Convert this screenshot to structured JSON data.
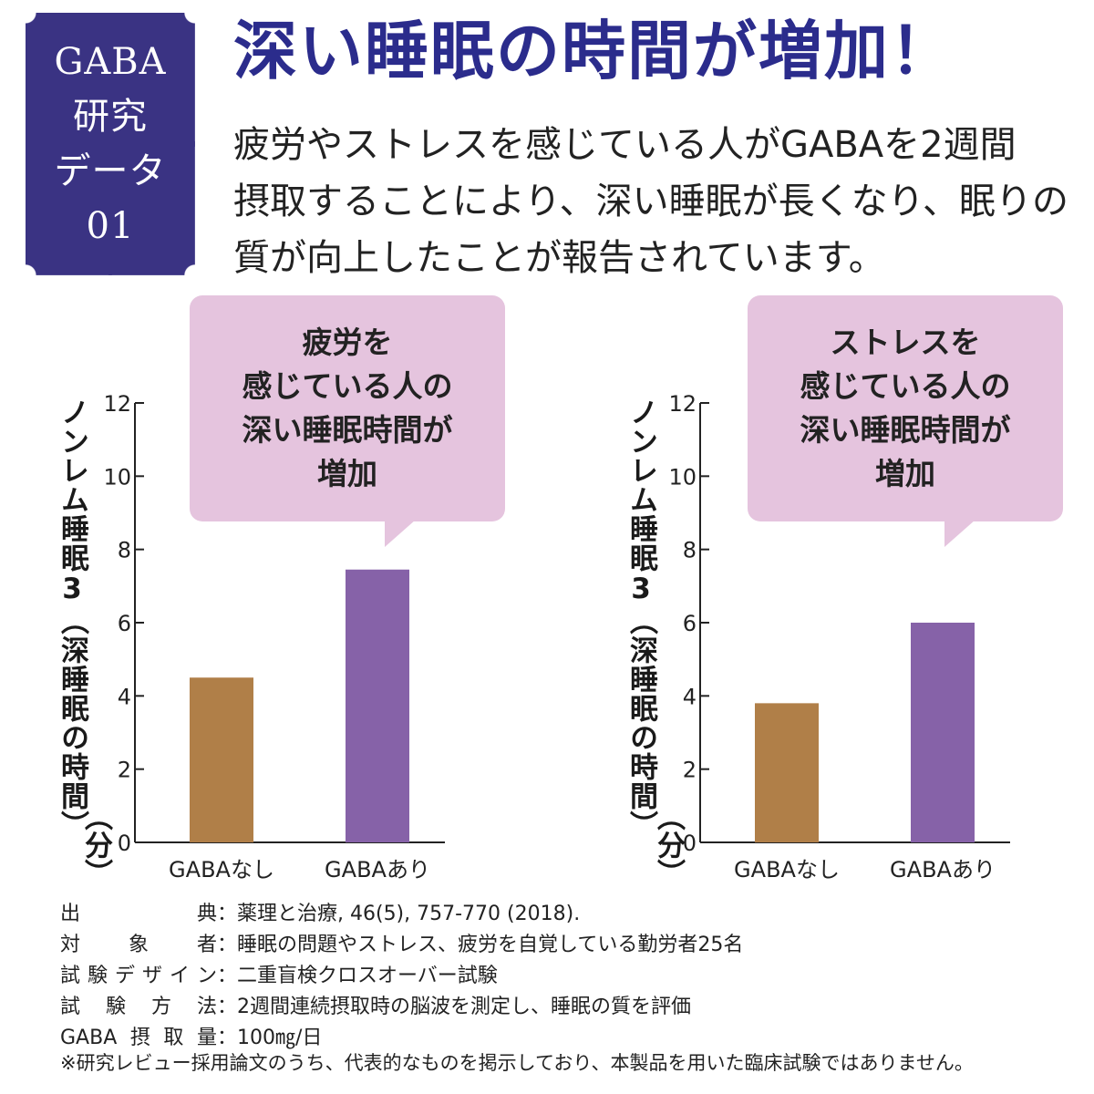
{
  "badge": {
    "lines": [
      "GABA",
      "研究",
      "データ",
      "01"
    ]
  },
  "header": {
    "title": "深い睡眠の時間が増加！",
    "lead_lines": [
      "疲労やストレスを感じている人がGABAを2週間",
      "摂取することにより、深い睡眠が長くなり、眠りの",
      "質が向上したことが報告されています。"
    ]
  },
  "panels": [
    {
      "callout_lines": [
        "疲労を",
        "感じている人の",
        "深い睡眠時間が",
        "増加"
      ]
    },
    {
      "callout_lines": [
        "ストレスを",
        "感じている人の",
        "深い睡眠時間が",
        "増加"
      ]
    }
  ],
  "colors": {
    "without_gaba": "#b07f48",
    "with_gaba": "#8662a8",
    "callout": "#e5c4de",
    "title": "#2b2c8c",
    "badge": "#3a3383"
  },
  "chart_data": [
    {
      "type": "bar",
      "categories": [
        "GABAなし",
        "GABAあり"
      ],
      "values": [
        4.5,
        7.45
      ],
      "ylabel": "ノンレム睡眠3（深睡眠の時間）",
      "yunit": "（分）",
      "ylim": [
        0,
        12
      ],
      "yticks": [
        0,
        2,
        4,
        6,
        8,
        10,
        12
      ],
      "grid": false
    },
    {
      "type": "bar",
      "categories": [
        "GABAなし",
        "GABAあり"
      ],
      "values": [
        3.8,
        6.0
      ],
      "ylabel": "ノンレム睡眠3（深睡眠の時間）",
      "yunit": "（分）",
      "ylim": [
        0,
        12
      ],
      "yticks": [
        0,
        2,
        4,
        6,
        8,
        10,
        12
      ],
      "grid": false
    }
  ],
  "study": [
    {
      "label": "出典",
      "value": "：薬理と治療, 46(5), 757-770 (2018)."
    },
    {
      "label": "対象者",
      "value": "：睡眠の問題やストレス、疲労を自覚している勤労者25名"
    },
    {
      "label": "試験デザイン",
      "value": "：二重盲検クロスオーバー試験"
    },
    {
      "label": "試験方法",
      "value": "：2週間連続摂取時の脳波を測定し、睡眠の質を評価"
    },
    {
      "label": "GABA摂取量",
      "value": "：100㎎/日"
    }
  ],
  "footnote": "※研究レビュー採用論文のうち、代表的なものを掲示しており、本製品を用いた臨床試験ではありません。"
}
